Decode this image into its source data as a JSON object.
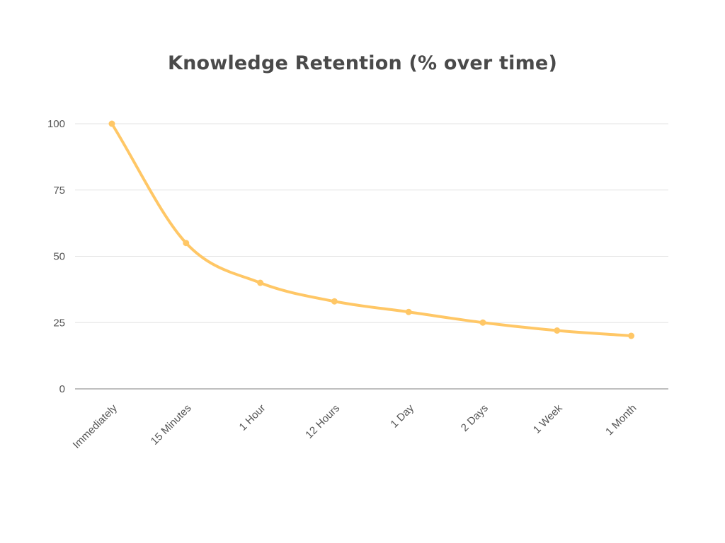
{
  "chart_data": {
    "type": "line",
    "title": "Knowledge Retention (% over time)",
    "xlabel": "",
    "ylabel": "",
    "categories": [
      "Immediately",
      "15 Minutes",
      "1 Hour",
      "12 Hours",
      "1 Day",
      "2 Days",
      "1 Week",
      "1 Month"
    ],
    "series": [
      {
        "values": [
          100,
          55,
          40,
          33,
          29,
          25,
          22,
          20
        ],
        "color": "#FFC766"
      }
    ],
    "ylim": [
      0,
      100
    ],
    "yticks": [
      0,
      25,
      50,
      75,
      100
    ],
    "grid": true,
    "legend": "none",
    "colors": {
      "line": "#FFC766",
      "grid": "#e3e3e3",
      "axis": "#aaaaaa",
      "text": "#555555",
      "title": "#4a4a4a"
    }
  }
}
